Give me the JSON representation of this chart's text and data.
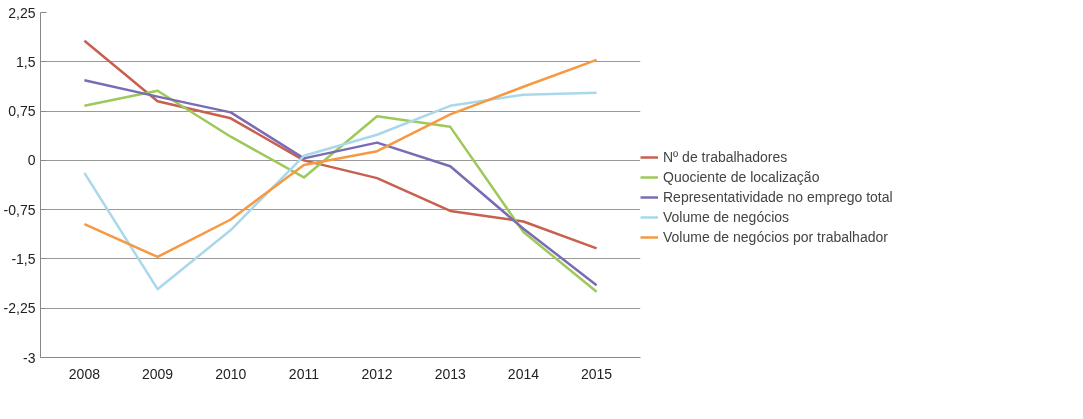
{
  "chart_data": {
    "type": "line",
    "categories": [
      "2008",
      "2009",
      "2010",
      "2011",
      "2012",
      "2013",
      "2014",
      "2015"
    ],
    "series": [
      {
        "name": "Nº de trabalhadores",
        "color": "#c8604f",
        "values": [
          1.82,
          0.9,
          0.64,
          0.0,
          -0.27,
          -0.77,
          -0.93,
          -1.34
        ]
      },
      {
        "name": "Quociente de localização",
        "color": "#9cc95a",
        "values": [
          0.83,
          1.06,
          0.36,
          -0.26,
          0.67,
          0.51,
          -1.09,
          -2.0
        ]
      },
      {
        "name": "Representatividade no emprego total",
        "color": "#7b6bb5",
        "values": [
          1.22,
          0.97,
          0.73,
          0.03,
          0.27,
          -0.09,
          -1.04,
          -1.9
        ]
      },
      {
        "name": "Volume de negócios",
        "color": "#a9d8ea",
        "values": [
          -0.19,
          -1.96,
          -1.06,
          0.07,
          0.39,
          0.83,
          1.0,
          1.03
        ]
      },
      {
        "name": "Volume de negócios por trabalhador",
        "color": "#f59a42",
        "values": [
          -0.97,
          -1.47,
          -0.9,
          -0.07,
          0.14,
          0.7,
          1.12,
          1.53
        ]
      }
    ],
    "ylim": [
      -3,
      2.25
    ],
    "yticks": [
      {
        "value": -3,
        "label": "-3"
      },
      {
        "value": -2.25,
        "label": "-2,25"
      },
      {
        "value": -1.5,
        "label": "-1,5"
      },
      {
        "value": -0.75,
        "label": "-0,75"
      },
      {
        "value": 0,
        "label": "0"
      },
      {
        "value": 0.75,
        "label": "0,75"
      },
      {
        "value": 1.5,
        "label": "1,5"
      },
      {
        "value": 2.25,
        "label": "2,25"
      }
    ],
    "grid": "y",
    "legend": "right",
    "marker": "none",
    "line_style": "solid"
  }
}
